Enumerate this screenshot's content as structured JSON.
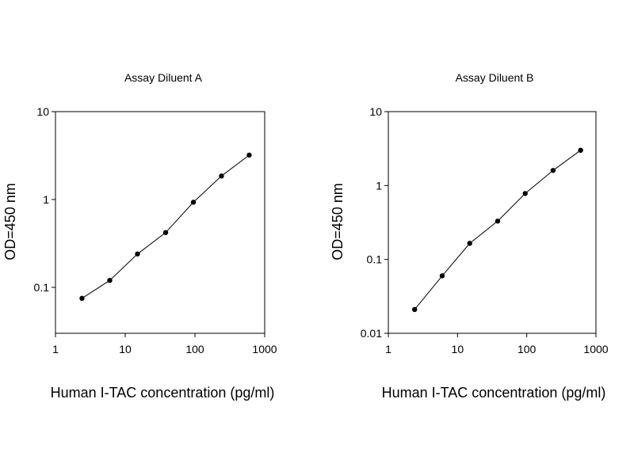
{
  "chart_data": [
    {
      "type": "line",
      "title": "Assay Diluent A",
      "xlabel": "Human I-TAC concentration (pg/ml)",
      "ylabel": "OD=450 nm",
      "xscale": "log",
      "yscale": "log",
      "xlim": [
        1,
        1000
      ],
      "ylim": [
        0.03,
        10
      ],
      "xticks": [
        1,
        10,
        100,
        1000
      ],
      "xtick_labels": [
        "1",
        "10",
        "100",
        "1000"
      ],
      "yticks": [
        0.1,
        1,
        10
      ],
      "ytick_labels": [
        "0.1",
        "1",
        "10"
      ],
      "series": [
        {
          "name": "Assay Diluent A",
          "x": [
            2.4,
            6,
            15,
            38,
            95,
            240,
            600
          ],
          "y": [
            0.075,
            0.12,
            0.24,
            0.42,
            0.93,
            1.85,
            3.2
          ]
        }
      ]
    },
    {
      "type": "line",
      "title": "Assay Diluent B",
      "xlabel": "Human I-TAC concentration (pg/ml)",
      "ylabel": "OD=450 nm",
      "xscale": "log",
      "yscale": "log",
      "xlim": [
        1,
        1000
      ],
      "ylim": [
        0.01,
        10
      ],
      "xticks": [
        1,
        10,
        100,
        1000
      ],
      "xtick_labels": [
        "1",
        "10",
        "100",
        "1000"
      ],
      "yticks": [
        0.01,
        0.1,
        1,
        10
      ],
      "ytick_labels": [
        "0.01",
        "0.1",
        "1",
        "10"
      ],
      "series": [
        {
          "name": "Assay Diluent B",
          "x": [
            2.4,
            6,
            15,
            38,
            95,
            240,
            600
          ],
          "y": [
            0.021,
            0.06,
            0.165,
            0.33,
            0.78,
            1.6,
            3.0
          ]
        }
      ]
    }
  ]
}
